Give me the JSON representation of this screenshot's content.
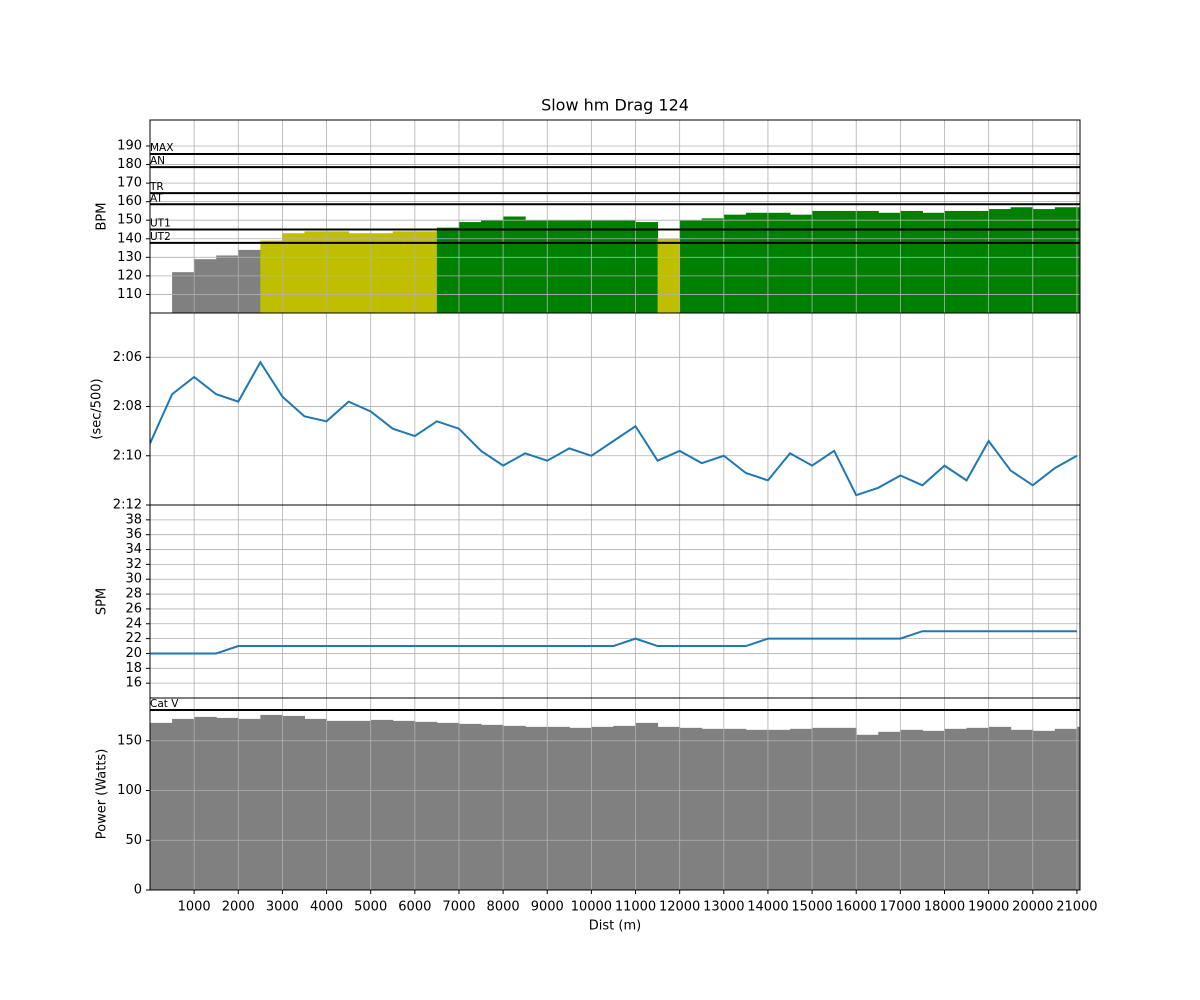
{
  "chart_data": [
    {
      "type": "area",
      "title": "Slow hm Drag 124",
      "ylabel": "BPM",
      "x": [
        0,
        500,
        1000,
        1500,
        2000,
        2500,
        3000,
        3500,
        4000,
        4500,
        5000,
        5500,
        6000,
        6500,
        7000,
        7500,
        8000,
        8500,
        9000,
        9500,
        10000,
        10500,
        11000,
        11500,
        12000,
        12500,
        13000,
        13500,
        14000,
        14500,
        15000,
        15500,
        16000,
        16500,
        17000,
        17500,
        18000,
        18500,
        19000,
        19500,
        20000,
        20500,
        21000
      ],
      "values": [
        null,
        122,
        129,
        131,
        134,
        139,
        143,
        144,
        144,
        143,
        143,
        144,
        144,
        146,
        149,
        150,
        152,
        150,
        150,
        150,
        150,
        150,
        149,
        140,
        150,
        151,
        153,
        154,
        154,
        153,
        155,
        155,
        155,
        154,
        155,
        154,
        155,
        155,
        156,
        157,
        156,
        157,
        157
      ],
      "zone_colors": [
        "#808080",
        "#bfbf00",
        "#008000"
      ],
      "hlines": [
        {
          "label": "MAX",
          "value": 185.7
        },
        {
          "label": "AN",
          "value": 178.6
        },
        {
          "label": "TR",
          "value": 164.6
        },
        {
          "label": "AT",
          "value": 158.6
        },
        {
          "label": "UT1",
          "value": 145
        },
        {
          "label": "UT2",
          "value": 137.8
        }
      ],
      "xlim": [
        0,
        21070
      ],
      "xticks": [
        1000,
        2000,
        3000,
        4000,
        5000,
        6000,
        7000,
        8000,
        9000,
        10000,
        11000,
        12000,
        13000,
        14000,
        15000,
        16000,
        17000,
        18000,
        19000,
        20000,
        21000
      ],
      "ylim": [
        100,
        204
      ],
      "yticks": [
        110,
        120,
        130,
        140,
        150,
        160,
        170,
        180,
        190
      ],
      "grid": true
    },
    {
      "type": "line",
      "ylabel": "(sec/500)",
      "color": "#1f77b4",
      "x": [
        0,
        500,
        1000,
        1500,
        2000,
        2500,
        3000,
        3500,
        4000,
        4500,
        5000,
        5500,
        6000,
        6500,
        7000,
        7500,
        8000,
        8500,
        9000,
        9500,
        10000,
        10500,
        11000,
        11500,
        12000,
        12500,
        13000,
        13500,
        14000,
        14500,
        15000,
        15500,
        16000,
        16500,
        17000,
        17500,
        18000,
        18500,
        19000,
        19500,
        20000,
        20500,
        21000
      ],
      "values": [
        129.5,
        127.5,
        126.8,
        127.5,
        127.8,
        126.2,
        127.6,
        128.4,
        128.6,
        127.8,
        128.2,
        128.9,
        129.2,
        128.6,
        128.9,
        129.8,
        130.4,
        129.9,
        130.2,
        129.7,
        130.0,
        129.4,
        128.8,
        130.2,
        129.8,
        130.3,
        130.0,
        130.7,
        131.0,
        129.9,
        130.4,
        129.8,
        131.6,
        131.3,
        130.8,
        131.2,
        130.4,
        131.0,
        129.4,
        130.6,
        131.2,
        130.5,
        130.0
      ],
      "xlim": [
        0,
        21070
      ],
      "xticks": [
        1000,
        2000,
        3000,
        4000,
        5000,
        6000,
        7000,
        8000,
        9000,
        10000,
        11000,
        12000,
        13000,
        14000,
        15000,
        16000,
        17000,
        18000,
        19000,
        20000,
        21000
      ],
      "ylim": [
        132,
        124.2
      ],
      "yticks": [
        {
          "value": 126,
          "label": "2:06"
        },
        {
          "value": 128,
          "label": "2:08"
        },
        {
          "value": 130,
          "label": "2:10"
        },
        {
          "value": 132,
          "label": "2:12"
        }
      ],
      "grid": true
    },
    {
      "type": "line",
      "ylabel": "SPM",
      "color": "#1f77b4",
      "x": [
        0,
        500,
        1000,
        1500,
        2000,
        2500,
        3000,
        3500,
        4000,
        4500,
        5000,
        5500,
        6000,
        6500,
        7000,
        7500,
        8000,
        8500,
        9000,
        9500,
        10000,
        10500,
        11000,
        11500,
        12000,
        12500,
        13000,
        13500,
        14000,
        14500,
        15000,
        15500,
        16000,
        16500,
        17000,
        17500,
        18000,
        18500,
        19000,
        19500,
        20000,
        20500,
        21000
      ],
      "values": [
        20,
        20,
        20,
        20,
        21,
        21,
        21,
        21,
        21,
        21,
        21,
        21,
        21,
        21,
        21,
        21,
        21,
        21,
        21,
        21,
        21,
        21,
        22,
        21,
        21,
        21,
        21,
        21,
        22,
        22,
        22,
        22,
        22,
        22,
        22,
        23,
        23,
        23,
        23,
        23,
        23,
        23,
        23
      ],
      "xlim": [
        0,
        21070
      ],
      "xticks": [
        1000,
        2000,
        3000,
        4000,
        5000,
        6000,
        7000,
        8000,
        9000,
        10000,
        11000,
        12000,
        13000,
        14000,
        15000,
        16000,
        17000,
        18000,
        19000,
        20000,
        21000
      ],
      "ylim": [
        14,
        40
      ],
      "yticks": [
        16,
        18,
        20,
        22,
        24,
        26,
        28,
        30,
        32,
        34,
        36,
        38
      ],
      "grid": true
    },
    {
      "type": "area",
      "ylabel": "Power (Watts)",
      "xlabel": "Dist (m)",
      "color": "#808080",
      "x": [
        0,
        500,
        1000,
        1500,
        2000,
        2500,
        3000,
        3500,
        4000,
        4500,
        5000,
        5500,
        6000,
        6500,
        7000,
        7500,
        8000,
        8500,
        9000,
        9500,
        10000,
        10500,
        11000,
        11500,
        12000,
        12500,
        13000,
        13500,
        14000,
        14500,
        15000,
        15500,
        16000,
        16500,
        17000,
        17500,
        18000,
        18500,
        19000,
        19500,
        20000,
        20500,
        21000
      ],
      "values": [
        168,
        172,
        174,
        173,
        172,
        176,
        175,
        172,
        170,
        170,
        171,
        170,
        169,
        168,
        167,
        166,
        165,
        164,
        164,
        163,
        164,
        165,
        168,
        164,
        163,
        162,
        162,
        161,
        161,
        162,
        163,
        163,
        156,
        159,
        161,
        160,
        162,
        163,
        164,
        161,
        160,
        162,
        164
      ],
      "hlines": [
        {
          "label": "Cat V",
          "value": 181
        }
      ],
      "xlim": [
        0,
        21070
      ],
      "xticks": [
        1000,
        2000,
        3000,
        4000,
        5000,
        6000,
        7000,
        8000,
        9000,
        10000,
        11000,
        12000,
        13000,
        14000,
        15000,
        16000,
        17000,
        18000,
        19000,
        20000,
        21000
      ],
      "ylim": [
        0,
        193
      ],
      "yticks": [
        0,
        50,
        100,
        150
      ],
      "grid": true
    }
  ]
}
